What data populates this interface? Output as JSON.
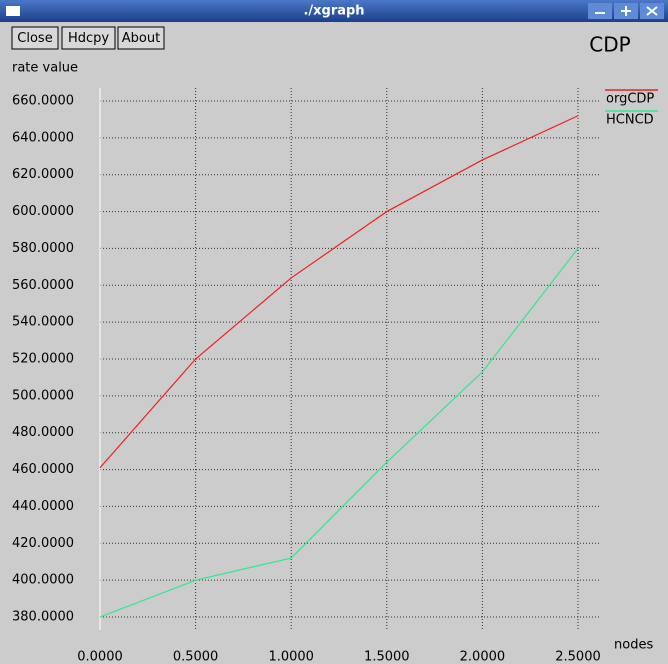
{
  "window": {
    "title": "./xgraph",
    "buttons": [
      "Close",
      "Hdcpy",
      "About"
    ]
  },
  "chart_data": {
    "type": "line",
    "title": "CDP",
    "ylabel": "rate value",
    "xlabel": "nodes",
    "x": [
      0,
      0.5,
      1.0,
      1.5,
      2.0,
      2.5
    ],
    "series": [
      {
        "name": "orgCDP",
        "color": "#ee2020",
        "values": [
          461,
          520,
          564,
          600,
          628,
          652
        ]
      },
      {
        "name": "HCNCD",
        "color": "#30e890",
        "values": [
          380,
          400,
          412,
          464,
          513,
          580
        ]
      }
    ],
    "xlim": [
      0,
      2.5
    ],
    "ylim": [
      380,
      660
    ],
    "xticks": [
      {
        "value": 0,
        "label": "0.0000"
      },
      {
        "value": 0.5,
        "label": "0.5000"
      },
      {
        "value": 1.0,
        "label": "1.0000"
      },
      {
        "value": 1.5,
        "label": "1.5000"
      },
      {
        "value": 2.0,
        "label": "2.0000"
      },
      {
        "value": 2.5,
        "label": "2.5000"
      }
    ],
    "yticks": [
      {
        "value": 380,
        "label": "380.0000"
      },
      {
        "value": 400,
        "label": "400.0000"
      },
      {
        "value": 420,
        "label": "420.0000"
      },
      {
        "value": 440,
        "label": "440.0000"
      },
      {
        "value": 460,
        "label": "460.0000"
      },
      {
        "value": 480,
        "label": "480.0000"
      },
      {
        "value": 500,
        "label": "500.0000"
      },
      {
        "value": 520,
        "label": "520.0000"
      },
      {
        "value": 540,
        "label": "540.0000"
      },
      {
        "value": 560,
        "label": "560.0000"
      },
      {
        "value": 580,
        "label": "580.0000"
      },
      {
        "value": 600,
        "label": "600.0000"
      },
      {
        "value": 620,
        "label": "620.0000"
      },
      {
        "value": 640,
        "label": "640.0000"
      },
      {
        "value": 660,
        "label": "660.0000"
      }
    ],
    "grid": true
  }
}
